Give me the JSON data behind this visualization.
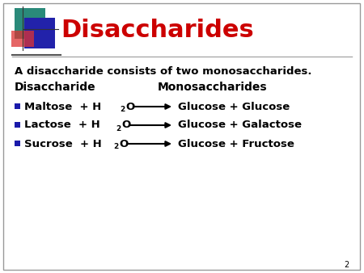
{
  "title": "Disaccharides",
  "title_color": "#CC0000",
  "title_fontsize": 22,
  "background_color": "#FFFFFF",
  "border_color": "#999999",
  "subtitle": "A disaccharide consists of two monosaccharides.",
  "col_header_left": "Disaccharide",
  "col_header_right": "Monosaccharides",
  "rows": [
    {
      "sugar": "Maltose",
      "product": "Glucose + Glucose"
    },
    {
      "sugar": "Lactose",
      "product": "Glucose + Galactose"
    },
    {
      "sugar": "Sucrose",
      "product": "Glucose + Fructose"
    }
  ],
  "bullet_color": "#1a1aaa",
  "text_color": "#000000",
  "arrow_color": "#000000",
  "logo_teal": "#2a8a7a",
  "logo_blue": "#2222aa",
  "logo_red": "#dd3333",
  "page_number": "2",
  "text_fontsize": 9.5,
  "header_fontsize": 10,
  "subtitle_fontsize": 9.5
}
